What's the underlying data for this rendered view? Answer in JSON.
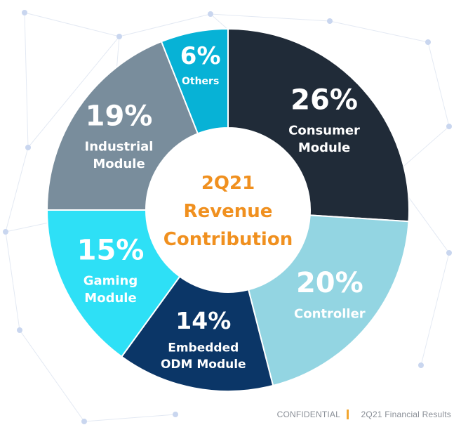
{
  "chart_data": {
    "type": "pie",
    "donut": true,
    "title": "",
    "center_text": [
      "2Q21",
      "Revenue",
      "Contribution"
    ],
    "slices": [
      {
        "label_lines": [
          "Consumer",
          "Module"
        ],
        "value": 26,
        "percent_label": "26%",
        "color": "#202b38"
      },
      {
        "label_lines": [
          "Controller"
        ],
        "value": 20,
        "percent_label": "20%",
        "color": "#93d5e2"
      },
      {
        "label_lines": [
          "Embedded",
          "ODM Module"
        ],
        "value": 14,
        "percent_label": "14%",
        "color": "#0b3667"
      },
      {
        "label_lines": [
          "Gaming",
          "Module"
        ],
        "value": 15,
        "percent_label": "15%",
        "color": "#2ee0f6"
      },
      {
        "label_lines": [
          "Industrial",
          "Module"
        ],
        "value": 19,
        "percent_label": "19%",
        "color": "#798d9c"
      },
      {
        "label_lines": [
          "Others"
        ],
        "value": 6,
        "percent_label": "6%",
        "color": "#07b2d6"
      }
    ]
  },
  "colors": {
    "center_text": "#f0901f",
    "footer_separator": "#f2a630",
    "footer_text": "#8a8f97"
  },
  "footer": {
    "confidential": "CONFIDENTIAL",
    "report": "2Q21 Financial Results"
  }
}
